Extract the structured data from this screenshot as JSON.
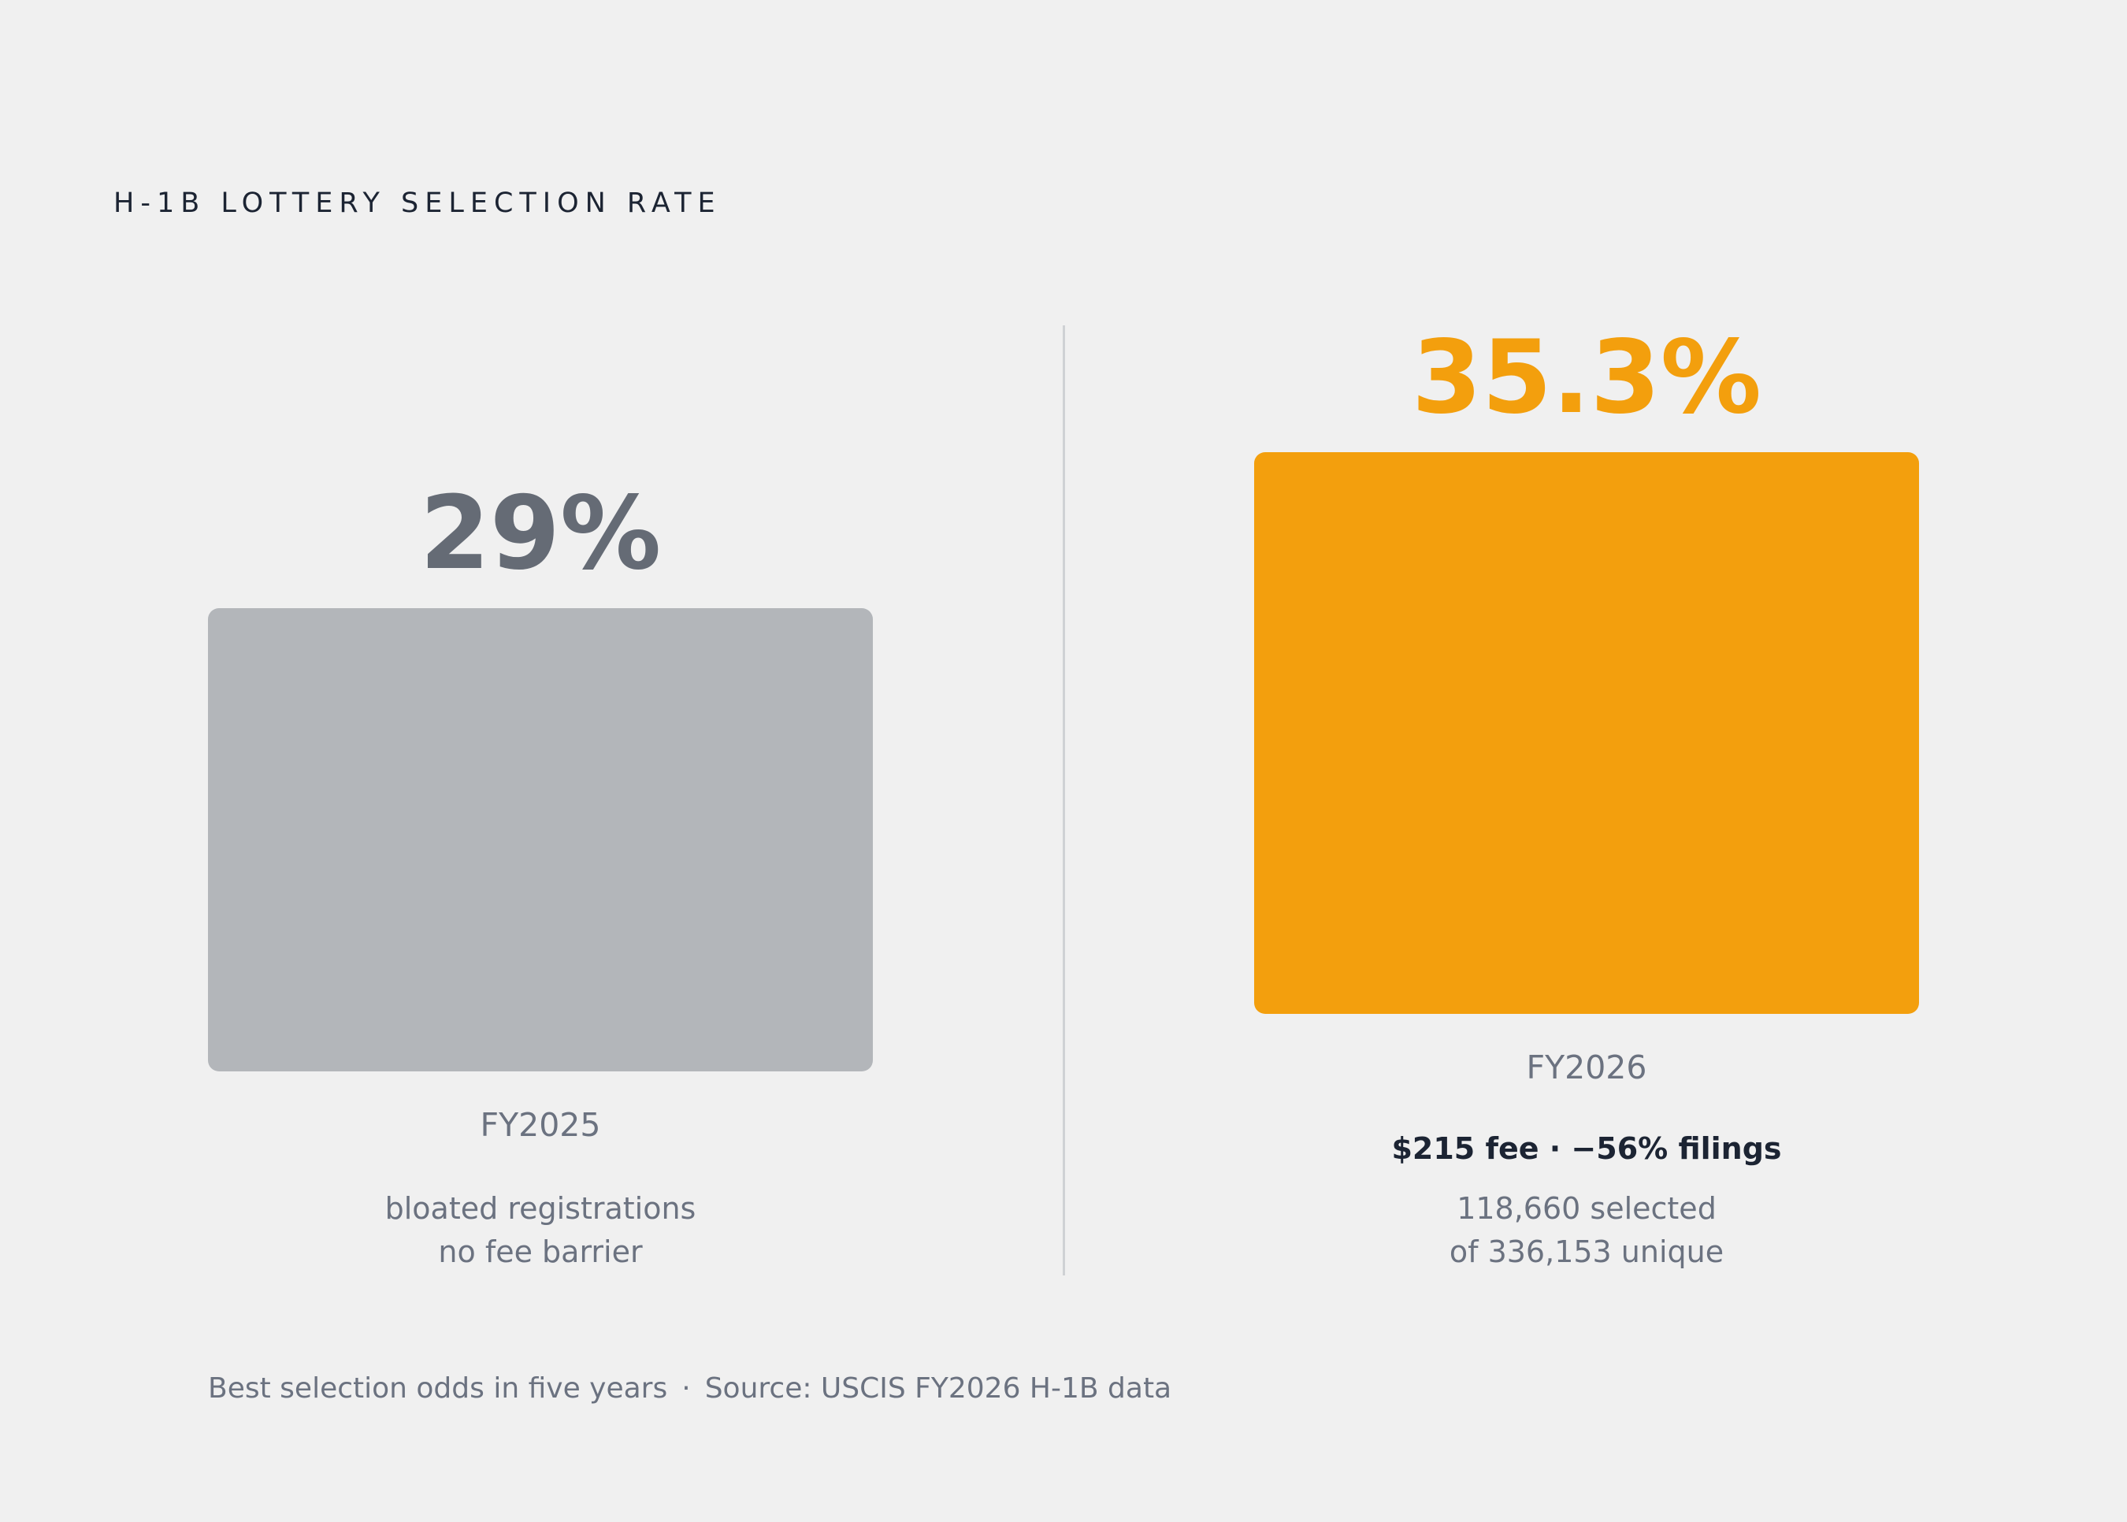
{
  "chart_data": {
    "type": "bar",
    "title": "H-1B LOTTERY SELECTION RATE",
    "xlabel": "",
    "ylabel": "",
    "categories": [
      "FY2025",
      "FY2026"
    ],
    "values": [
      29,
      35.3
    ],
    "value_labels": [
      "29%",
      "35.3%"
    ],
    "unit": "%",
    "grid": false,
    "legend": "none",
    "colors": [
      "#b3b6ba",
      "#f39f0d"
    ],
    "value_label_colors": [
      "#656b75",
      "#f39f0d"
    ]
  },
  "annotations": {
    "fy2025": {
      "note_line1": "bloated registrations",
      "note_line2": "no fee barrier"
    },
    "fy2026": {
      "highlight": "$215 fee · −56% filings",
      "note_line1": "118,660 selected",
      "note_line2": "of 336,153 unique"
    }
  },
  "footer": {
    "note": "Best selection odds in five years",
    "separator": "·",
    "source": "Source: USCIS FY2026 H-1B data"
  }
}
